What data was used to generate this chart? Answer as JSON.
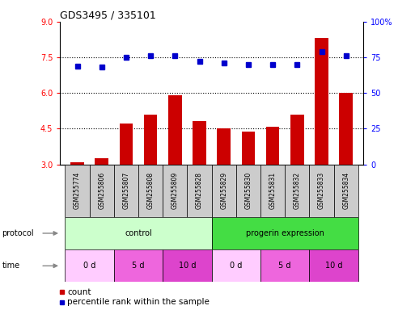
{
  "title": "GDS3495 / 335101",
  "samples": [
    "GSM255774",
    "GSM255806",
    "GSM255807",
    "GSM255808",
    "GSM255809",
    "GSM255828",
    "GSM255829",
    "GSM255830",
    "GSM255831",
    "GSM255832",
    "GSM255833",
    "GSM255834"
  ],
  "count_values": [
    3.07,
    3.27,
    4.72,
    5.1,
    5.92,
    4.82,
    4.5,
    4.37,
    4.57,
    5.1,
    8.3,
    6.0
  ],
  "percentile_values": [
    69,
    68,
    75,
    76,
    76,
    72,
    71,
    70,
    70,
    70,
    79,
    76
  ],
  "ylim_left": [
    3,
    9
  ],
  "ylim_right": [
    0,
    100
  ],
  "yticks_left": [
    3,
    4.5,
    6,
    7.5,
    9
  ],
  "yticks_right": [
    0,
    25,
    50,
    75,
    100
  ],
  "bar_color": "#cc0000",
  "dot_color": "#0000cc",
  "bg_color": "#ffffff",
  "protocol_ctrl_color": "#ccffcc",
  "protocol_prog_color": "#44dd44",
  "time_0d_color": "#ffccff",
  "time_5d_color": "#ee66dd",
  "time_10d_color": "#dd44cc",
  "tick_label_bg": "#cccccc",
  "legend_count_label": "count",
  "legend_pct_label": "percentile rank within the sample",
  "protocol_label": "protocol",
  "time_label": "time",
  "title_fontsize": 9,
  "axis_fontsize": 7,
  "tick_fontsize": 6.5,
  "legend_fontsize": 7.5
}
